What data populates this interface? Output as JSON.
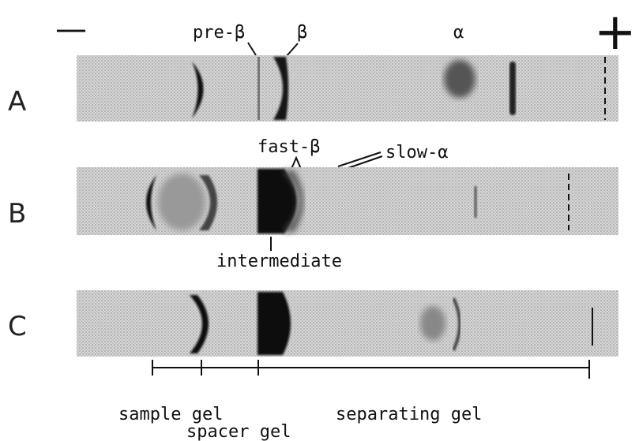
{
  "polarity": {
    "negative": "—",
    "positive": "+"
  },
  "lanes": [
    {
      "label": "A"
    },
    {
      "label": "B"
    },
    {
      "label": "C"
    }
  ],
  "band_labels": {
    "pre_beta": "pre-β",
    "beta": "β",
    "alpha": "α",
    "fast_beta": "fast-β",
    "slow_alpha": "slow-α",
    "intermediate": "intermediate"
  },
  "gel_regions": {
    "sample": "sample gel",
    "spacer": "spacer gel",
    "separating": "separating gel"
  }
}
